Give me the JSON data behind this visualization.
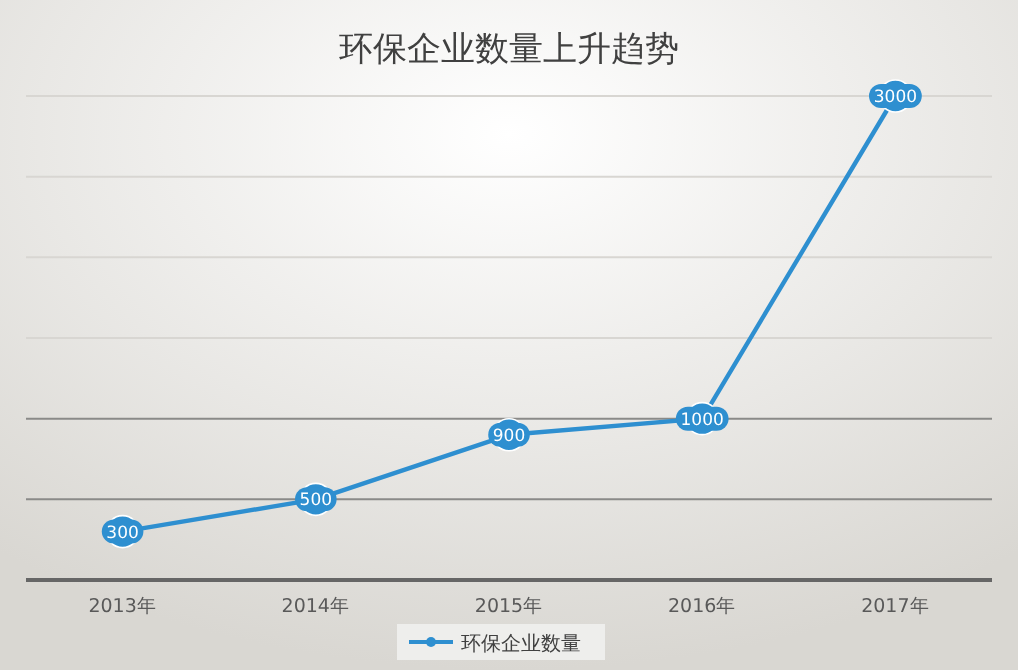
{
  "chart_data": {
    "type": "line",
    "title": "环保企业数量上升趋势",
    "categories": [
      "2013年",
      "2014年",
      "2015年",
      "2016年",
      "2017年"
    ],
    "series": [
      {
        "name": "环保企业数量",
        "color": "#2e8fd0",
        "values": [
          300,
          500,
          900,
          1000,
          3000
        ]
      }
    ],
    "ylim": [
      0,
      3000
    ],
    "yticks": [
      {
        "value": 0,
        "label": null
      },
      {
        "value": 500,
        "label": null
      },
      {
        "value": 1000,
        "label": null
      },
      {
        "value": 1500,
        "label": null
      },
      {
        "value": 2000,
        "label": null
      },
      {
        "value": 2500,
        "label": null
      },
      {
        "value": 3000,
        "label": null
      }
    ],
    "tick_labels": "x",
    "grid": "y",
    "legend": "bottom",
    "marker": "circle",
    "line_style": "solid",
    "data_labels": true
  }
}
